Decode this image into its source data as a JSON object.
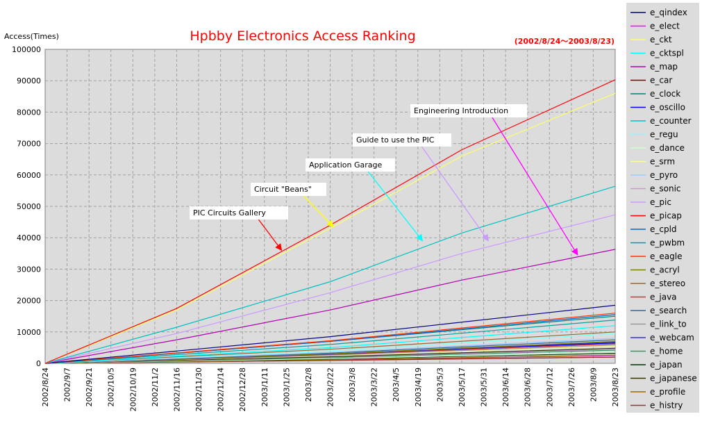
{
  "chart_data": {
    "type": "line",
    "title": "Hpbby Electronics Access Ranking",
    "period": "(2002/8/24～2003/8/23)",
    "ylabel": "Access(Times)",
    "xlabel": "",
    "ylim": [
      0,
      100000
    ],
    "yticks": [
      0,
      10000,
      20000,
      30000,
      40000,
      50000,
      60000,
      70000,
      80000,
      90000,
      100000
    ],
    "xlim": [
      "2002/8/24",
      "2003/8/23"
    ],
    "xticks": [
      "2002/8/24",
      "2002/9/7",
      "2002/9/21",
      "2002/10/5",
      "2002/10/19",
      "2002/11/2",
      "2002/11/16",
      "2002/11/30",
      "2002/12/14",
      "2002/12/28",
      "2003/1/11",
      "2003/1/25",
      "2003/2/8",
      "2003/2/22",
      "2003/3/8",
      "2003/3/22",
      "2003/4/5",
      "2003/4/19",
      "2003/5/3",
      "2003/5/17",
      "2003/5/31",
      "2003/6/14",
      "2003/6/28",
      "2003/7/12",
      "2003/7/26",
      "2003/8/9",
      "2003/8/23"
    ],
    "grid": true,
    "legend_position": "right",
    "series": [
      {
        "name": "e_qindex",
        "color": "#000080",
        "x": [
          "2002/8/24",
          "2003/2/22",
          "2003/8/23"
        ],
        "values": [
          0,
          8500,
          18500
        ]
      },
      {
        "name": "e_elect",
        "color": "#ff00ff",
        "x": [
          "2002/8/24",
          "2003/2/22",
          "2003/8/23"
        ],
        "values": [
          0,
          1200,
          2500
        ]
      },
      {
        "name": "e_ckt",
        "color": "#ffff66",
        "x": [
          "2002/8/24",
          "2002/11/16",
          "2003/2/22",
          "2003/5/17",
          "2003/8/23"
        ],
        "values": [
          0,
          17000,
          43000,
          66000,
          86000
        ]
      },
      {
        "name": "e_cktspl",
        "color": "#00ffff",
        "x": [
          "2002/8/24",
          "2003/2/22",
          "2003/8/23"
        ],
        "values": [
          0,
          5000,
          12000
        ]
      },
      {
        "name": "e_map",
        "color": "#b000b0",
        "x": [
          "2002/8/24",
          "2002/11/16",
          "2003/2/22",
          "2003/5/17",
          "2003/8/23"
        ],
        "values": [
          0,
          7500,
          17000,
          26500,
          36300
        ]
      },
      {
        "name": "e_car",
        "color": "#800000",
        "x": [
          "2002/8/24",
          "2003/2/22",
          "2003/8/23"
        ],
        "values": [
          0,
          1000,
          2000
        ]
      },
      {
        "name": "e_clock",
        "color": "#008080",
        "x": [
          "2002/8/24",
          "2003/2/22",
          "2003/8/23"
        ],
        "values": [
          0,
          7000,
          15000
        ]
      },
      {
        "name": "e_oscillo",
        "color": "#0000ff",
        "x": [
          "2002/8/24",
          "2003/2/22",
          "2003/8/23"
        ],
        "values": [
          0,
          3000,
          6500
        ]
      },
      {
        "name": "e_counter",
        "color": "#00c0c0",
        "x": [
          "2002/8/24",
          "2002/11/16",
          "2003/2/22",
          "2003/5/17",
          "2003/8/23"
        ],
        "values": [
          0,
          11500,
          26000,
          41500,
          56400
        ]
      },
      {
        "name": "e_regu",
        "color": "#80ffff",
        "x": [
          "2002/8/24",
          "2003/2/22",
          "2003/8/23"
        ],
        "values": [
          0,
          4000,
          9500
        ]
      },
      {
        "name": "e_dance",
        "color": "#d0ffd0",
        "x": [
          "2002/8/24",
          "2003/2/22",
          "2003/8/23"
        ],
        "values": [
          0,
          1500,
          3500
        ]
      },
      {
        "name": "e_srm",
        "color": "#ffff99",
        "x": [
          "2002/8/24",
          "2003/2/22",
          "2003/8/23"
        ],
        "values": [
          0,
          2500,
          5500
        ]
      },
      {
        "name": "e_pyro",
        "color": "#99ccff",
        "x": [
          "2002/8/24",
          "2003/2/22",
          "2003/8/23"
        ],
        "values": [
          0,
          3500,
          8000
        ]
      },
      {
        "name": "e_sonic",
        "color": "#cc99cc",
        "x": [
          "2002/8/24",
          "2003/2/22",
          "2003/8/23"
        ],
        "values": [
          0,
          2000,
          4500
        ]
      },
      {
        "name": "e_pic",
        "color": "#cc99ff",
        "x": [
          "2002/8/24",
          "2002/11/16",
          "2003/2/22",
          "2003/5/17",
          "2003/8/23"
        ],
        "values": [
          0,
          9500,
          22500,
          35000,
          47300
        ]
      },
      {
        "name": "e_picap",
        "color": "#ff0000",
        "x": [
          "2002/8/24",
          "2002/11/16",
          "2003/2/22",
          "2003/5/17",
          "2003/8/23"
        ],
        "values": [
          0,
          17500,
          44000,
          68000,
          90300
        ]
      },
      {
        "name": "e_cpld",
        "color": "#0066cc",
        "x": [
          "2002/8/24",
          "2003/2/22",
          "2003/8/23"
        ],
        "values": [
          0,
          7000,
          15500
        ]
      },
      {
        "name": "e_pwbm",
        "color": "#00a0a0",
        "x": [
          "2002/8/24",
          "2003/2/22",
          "2003/8/23"
        ],
        "values": [
          0,
          6000,
          13800
        ]
      },
      {
        "name": "e_eagle",
        "color": "#ff3300",
        "x": [
          "2002/8/24",
          "2003/2/22",
          "2003/8/23"
        ],
        "values": [
          0,
          7200,
          16000
        ]
      },
      {
        "name": "e_acryl",
        "color": "#808000",
        "x": [
          "2002/8/24",
          "2003/2/22",
          "2003/8/23"
        ],
        "values": [
          0,
          3000,
          7000
        ]
      },
      {
        "name": "e_stereo",
        "color": "#996633",
        "x": [
          "2002/8/24",
          "2003/2/22",
          "2003/8/23"
        ],
        "values": [
          0,
          4500,
          10000
        ]
      },
      {
        "name": "e_java",
        "color": "#cc3333",
        "x": [
          "2002/8/24",
          "2003/2/22",
          "2003/8/23"
        ],
        "values": [
          0,
          2800,
          6200
        ]
      },
      {
        "name": "e_search",
        "color": "#336699",
        "x": [
          "2002/8/24",
          "2003/2/22",
          "2003/8/23"
        ],
        "values": [
          0,
          3300,
          7500
        ]
      },
      {
        "name": "e_link_to",
        "color": "#999999",
        "x": [
          "2002/8/24",
          "2003/2/22",
          "2003/8/23"
        ],
        "values": [
          0,
          2600,
          5800
        ]
      },
      {
        "name": "e_webcam",
        "color": "#3333cc",
        "x": [
          "2002/8/24",
          "2003/2/22",
          "2003/8/23"
        ],
        "values": [
          0,
          2900,
          6800
        ]
      },
      {
        "name": "e_home",
        "color": "#339966",
        "x": [
          "2002/8/24",
          "2003/2/22",
          "2003/8/23"
        ],
        "values": [
          0,
          1800,
          4200
        ]
      },
      {
        "name": "e_japan",
        "color": "#003300",
        "x": [
          "2002/8/24",
          "2003/2/22",
          "2003/8/23"
        ],
        "values": [
          0,
          1400,
          3200
        ]
      },
      {
        "name": "e_japanese",
        "color": "#333300",
        "x": [
          "2002/8/24",
          "2003/2/22",
          "2003/8/23"
        ],
        "values": [
          0,
          2100,
          4800
        ]
      },
      {
        "name": "e_profile",
        "color": "#996600",
        "x": [
          "2002/8/24",
          "2003/2/22",
          "2003/8/23"
        ],
        "values": [
          0,
          1100,
          2600
        ]
      },
      {
        "name": "e_histry",
        "color": "#993333",
        "x": [
          "2002/8/24",
          "2003/2/22",
          "2003/8/23"
        ],
        "values": [
          0,
          900,
          2000
        ]
      }
    ],
    "annotations": [
      {
        "text": "PIC Circuits Gallery",
        "color": "#ff0000",
        "target": {
          "x": "2003/1/22",
          "y": 36000
        }
      },
      {
        "text": "Circuit \"Beans\"",
        "color": "#ffff00",
        "target": {
          "x": "2003/2/24",
          "y": 43500
        }
      },
      {
        "text": "Application Garage",
        "color": "#00ffff",
        "target": {
          "x": "2003/4/22",
          "y": 39000
        }
      },
      {
        "text": "Guide to use the PIC",
        "color": "#cc99ff",
        "target": {
          "x": "2003/6/3",
          "y": 39000
        }
      },
      {
        "text": "Engineering Introduction",
        "color": "#ff00ff",
        "target": {
          "x": "2003/7/30",
          "y": 34500
        }
      }
    ]
  }
}
